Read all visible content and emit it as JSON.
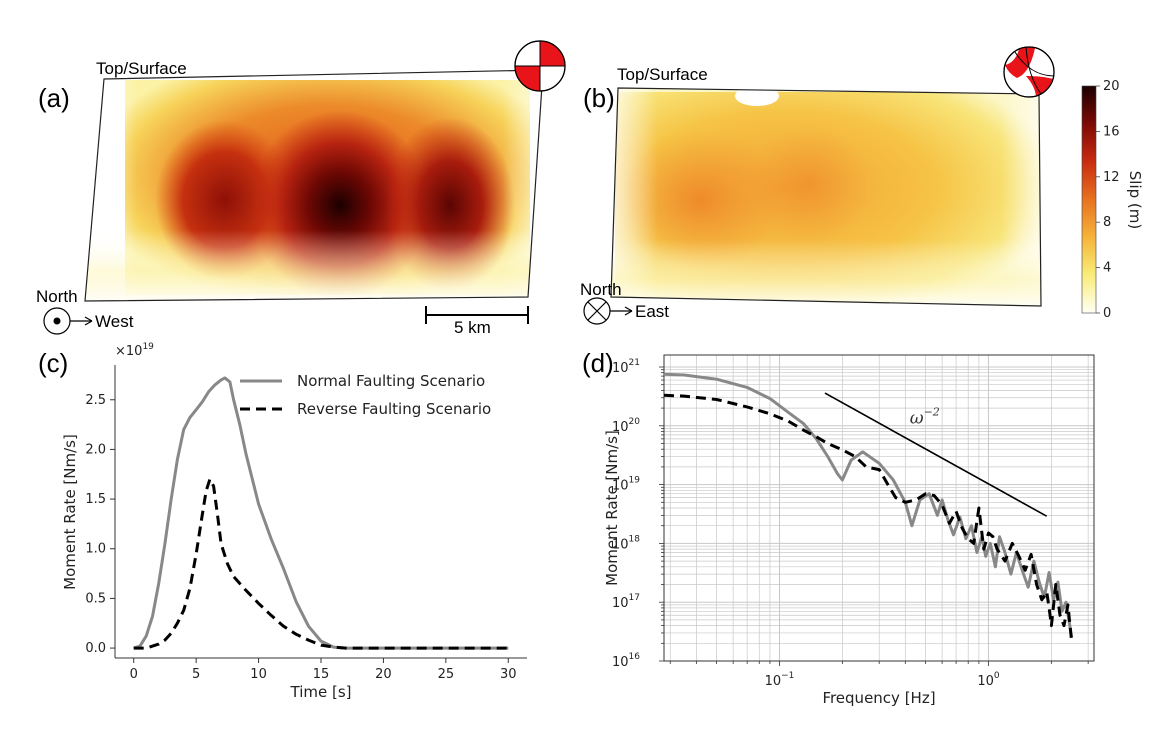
{
  "panels": {
    "a": {
      "label": "(a)",
      "top_label": "Top/Surface",
      "north_label": "North",
      "direction_label": "West",
      "scale_bar_label": "5 km"
    },
    "b": {
      "label": "(b)",
      "top_label": "Top/Surface",
      "north_label": "North",
      "direction_label": "East"
    },
    "c": {
      "label": "(c)"
    },
    "d": {
      "label": "(d)"
    }
  },
  "colorbar": {
    "label": "Slip (m)",
    "ticks": [
      "0",
      "4",
      "8",
      "12",
      "16",
      "20"
    ],
    "range": [
      0,
      20
    ],
    "colors": [
      "#fffff3",
      "#f9ec79",
      "#f5b53a",
      "#e87220",
      "#c72b11",
      "#7e0a05",
      "#1b0000"
    ]
  },
  "colors": {
    "normal": "#888888",
    "reverse": "#000000",
    "beachball_red": "#e8141a",
    "grid": "#c8c8c8"
  },
  "chart_data": [
    {
      "type": "line",
      "panel": "(c)",
      "xlabel": "Time [s]",
      "ylabel": "Moment Rate [Nm/s]",
      "y_multiplier": "×10",
      "y_exponent": "19",
      "xlim": [
        -1.5,
        31.5
      ],
      "ylim": [
        -0.1,
        2.85
      ],
      "xticks": [
        0,
        5,
        10,
        15,
        20,
        25,
        30
      ],
      "yticks": [
        0.0,
        0.5,
        1.0,
        1.5,
        2.0,
        2.5
      ],
      "ytick_labels": [
        "0.0",
        "0.5",
        "1.0",
        "1.5",
        "2.0",
        "2.5"
      ],
      "legend_position": "top-right",
      "series": [
        {
          "name": "Normal Faulting Scenario",
          "style": "solid",
          "x": [
            0,
            0.5,
            1,
            1.5,
            2,
            2.5,
            3,
            3.5,
            4,
            4.5,
            5,
            5.5,
            6,
            6.5,
            7,
            7.3,
            7.7,
            8,
            8.5,
            9,
            10,
            11,
            12,
            13,
            14,
            15,
            16,
            17,
            18,
            20,
            25,
            30
          ],
          "y": [
            0,
            0.02,
            0.12,
            0.32,
            0.65,
            1.05,
            1.5,
            1.9,
            2.2,
            2.32,
            2.4,
            2.48,
            2.58,
            2.65,
            2.7,
            2.72,
            2.68,
            2.5,
            2.25,
            1.95,
            1.45,
            1.1,
            0.8,
            0.47,
            0.22,
            0.07,
            0.01,
            0,
            0,
            0,
            0,
            0
          ]
        },
        {
          "name": "Reverse Faulting Scenario",
          "style": "dashed",
          "x": [
            0,
            1,
            2,
            2.5,
            3,
            3.5,
            4,
            4.5,
            5,
            5.5,
            5.8,
            6.1,
            6.4,
            6.7,
            7,
            7.5,
            8,
            9,
            10,
            11,
            12,
            13,
            14,
            15,
            16,
            17,
            20,
            25,
            30
          ],
          "y": [
            0,
            0,
            0.04,
            0.08,
            0.15,
            0.25,
            0.38,
            0.6,
            0.95,
            1.35,
            1.58,
            1.7,
            1.63,
            1.35,
            1.05,
            0.85,
            0.72,
            0.58,
            0.45,
            0.33,
            0.22,
            0.14,
            0.08,
            0.03,
            0.01,
            0,
            0,
            0,
            0
          ]
        }
      ]
    },
    {
      "type": "line",
      "panel": "(d)",
      "xlabel": "Frequency [Hz]",
      "ylabel": "Moment Rate [Nm/s]",
      "x_scale": "log",
      "y_scale": "log",
      "xlim": [
        0.028,
        3.2
      ],
      "ylim": [
        1e+16,
        1.6e+21
      ],
      "xtick_labels": [
        {
          "base": "10",
          "exp": "−1",
          "value": 0.1
        },
        {
          "base": "10",
          "exp": "0",
          "value": 1
        }
      ],
      "ytick_labels": [
        {
          "base": "10",
          "exp": "16",
          "value": 1e+16
        },
        {
          "base": "10",
          "exp": "17",
          "value": 1e+17
        },
        {
          "base": "10",
          "exp": "18",
          "value": 1e+18
        },
        {
          "base": "10",
          "exp": "19",
          "value": 1e+19
        },
        {
          "base": "10",
          "exp": "20",
          "value": 1e+20
        },
        {
          "base": "10",
          "exp": "21",
          "value": 1e+21
        }
      ],
      "grid": true,
      "annotation": {
        "text": "ω",
        "exp": "−2",
        "x": 0.42,
        "y": 1.1e+20
      },
      "reference_line": {
        "x": [
          0.165,
          1.9
        ],
        "y": [
          3.6e+20,
          2.9e+18
        ]
      },
      "series": [
        {
          "name": "Normal Faulting Scenario",
          "style": "solid",
          "x": [
            0.028,
            0.035,
            0.05,
            0.07,
            0.09,
            0.11,
            0.13,
            0.15,
            0.17,
            0.19,
            0.2,
            0.22,
            0.25,
            0.3,
            0.35,
            0.4,
            0.43,
            0.47,
            0.52,
            0.57,
            0.6,
            0.64,
            0.68,
            0.73,
            0.78,
            0.83,
            0.88,
            0.93,
            0.97,
            1.02,
            1.08,
            1.13,
            1.2,
            1.28,
            1.36,
            1.45,
            1.55,
            1.65,
            1.75,
            1.85,
            1.95,
            2.05,
            2.15,
            2.25,
            2.35,
            2.45,
            2.5
          ],
          "y": [
            7.5e+20,
            7.3e+20,
            6.2e+20,
            4.5e+20,
            2.9e+20,
            1.7e+20,
            1.1e+20,
            6e+19,
            3e+19,
            1.5e+19,
            1.2e+19,
            2.6e+19,
            3.6e+19,
            2.3e+19,
            1.2e+19,
            5e+18,
            2e+18,
            5.5e+18,
            7e+18,
            3e+18,
            5.5e+18,
            2.5e+18,
            1.4e+18,
            2.8e+18,
            1.2e+18,
            2e+18,
            7e+17,
            1.3e+18,
            6e+17,
            1e+18,
            4e+17,
            1.3e+18,
            7e+17,
            3e+17,
            7e+17,
            3.5e+17,
            1.8e+17,
            5e+17,
            2.2e+17,
            1.2e+17,
            3.2e+17,
            1.1e+17,
            2.2e+17,
            7e+16,
            1e+17,
            4e+16,
            2.5e+16
          ]
        },
        {
          "name": "Reverse Faulting Scenario",
          "style": "dashed",
          "x": [
            0.028,
            0.035,
            0.05,
            0.07,
            0.09,
            0.11,
            0.13,
            0.15,
            0.17,
            0.2,
            0.23,
            0.26,
            0.3,
            0.33,
            0.36,
            0.4,
            0.45,
            0.5,
            0.55,
            0.6,
            0.65,
            0.7,
            0.75,
            0.8,
            0.85,
            0.9,
            0.95,
            1.0,
            1.05,
            1.1,
            1.2,
            1.3,
            1.4,
            1.5,
            1.6,
            1.7,
            1.8,
            1.9,
            1.95,
            2.0,
            2.1,
            2.2,
            2.3,
            2.4,
            2.5
          ],
          "y": [
            3.3e+20,
            3.2e+20,
            2.8e+20,
            2.1e+20,
            1.6e+20,
            1.2e+20,
            8.5e+19,
            6.5e+19,
            5e+19,
            3.9e+19,
            3e+19,
            2e+19,
            1.8e+19,
            1e+19,
            6e+18,
            5e+18,
            5.5e+18,
            7e+18,
            6.5e+18,
            4.5e+18,
            2.2e+18,
            3.5e+18,
            1.8e+18,
            1.2e+18,
            1e+18,
            4e+18,
            8e+17,
            1.5e+18,
            1.3e+18,
            8e+17,
            5e+17,
            1e+18,
            6e+17,
            3.5e+17,
            6.5e+17,
            2e+17,
            1.1e+17,
            1.5e+17,
            8e+16,
            4e+16,
            2e+17,
            6e+16,
            4e+16,
            9e+16,
            2.2e+16
          ]
        }
      ]
    }
  ]
}
